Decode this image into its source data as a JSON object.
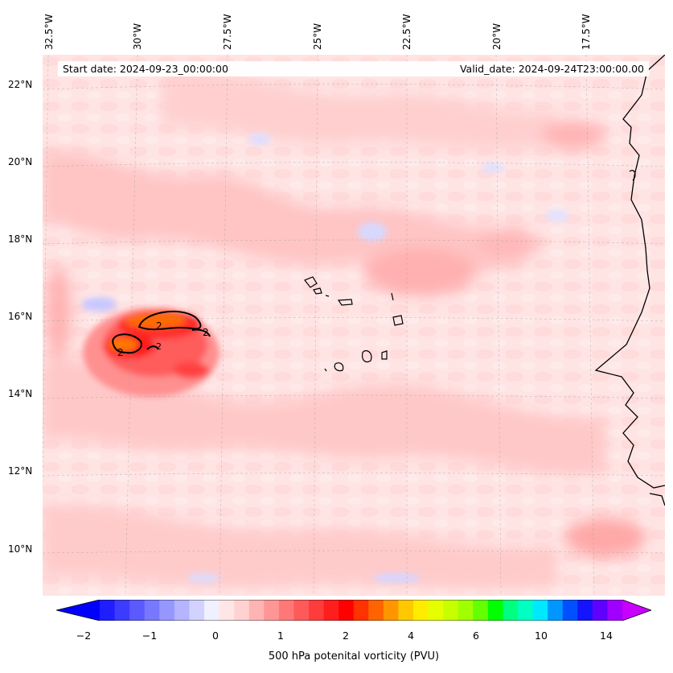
{
  "header": {
    "start_date": "Start date: 2024-09-23_00:00:00",
    "valid_date": "Valid_date: 2024-09-24T23:00:00.00"
  },
  "axes": {
    "lon_labels": [
      "32.5°W",
      "30°W",
      "27.5°W",
      "25°W",
      "22.5°W",
      "20°W",
      "17.5°W"
    ],
    "lat_labels": [
      "22°N",
      "20°N",
      "18°N",
      "16°N",
      "14°N",
      "12°N",
      "10°N"
    ]
  },
  "contour_labels": [
    "2",
    "2",
    "2",
    "2",
    "2"
  ],
  "colorbar": {
    "label": "500 hPa potenital vorticity (PVU)",
    "ticks": [
      "−2",
      "−1",
      "0",
      "1",
      "2",
      "4",
      "6",
      "10",
      "14"
    ],
    "colors": [
      "#1e1eff",
      "#3c3cff",
      "#5a5aff",
      "#7878ff",
      "#9696ff",
      "#b4b4ff",
      "#d2d2ff",
      "#f0f0ff",
      "#ffe6e6",
      "#ffd2d2",
      "#ffb4b4",
      "#ff9696",
      "#ff7878",
      "#ff5a5a",
      "#ff3c3c",
      "#ff1e1e",
      "#ff0000",
      "#ff3200",
      "#ff6400",
      "#ff9600",
      "#ffc800",
      "#ffec00",
      "#e6ff00",
      "#c8ff00",
      "#a0ff00",
      "#64ff00",
      "#00ff00",
      "#00ff80",
      "#00ffc0",
      "#00e8ff",
      "#0096ff",
      "#0050ff",
      "#1414ff",
      "#6000ff",
      "#a000ff"
    ],
    "under_color": "#0000ff",
    "over_color": "#c800ff"
  }
}
